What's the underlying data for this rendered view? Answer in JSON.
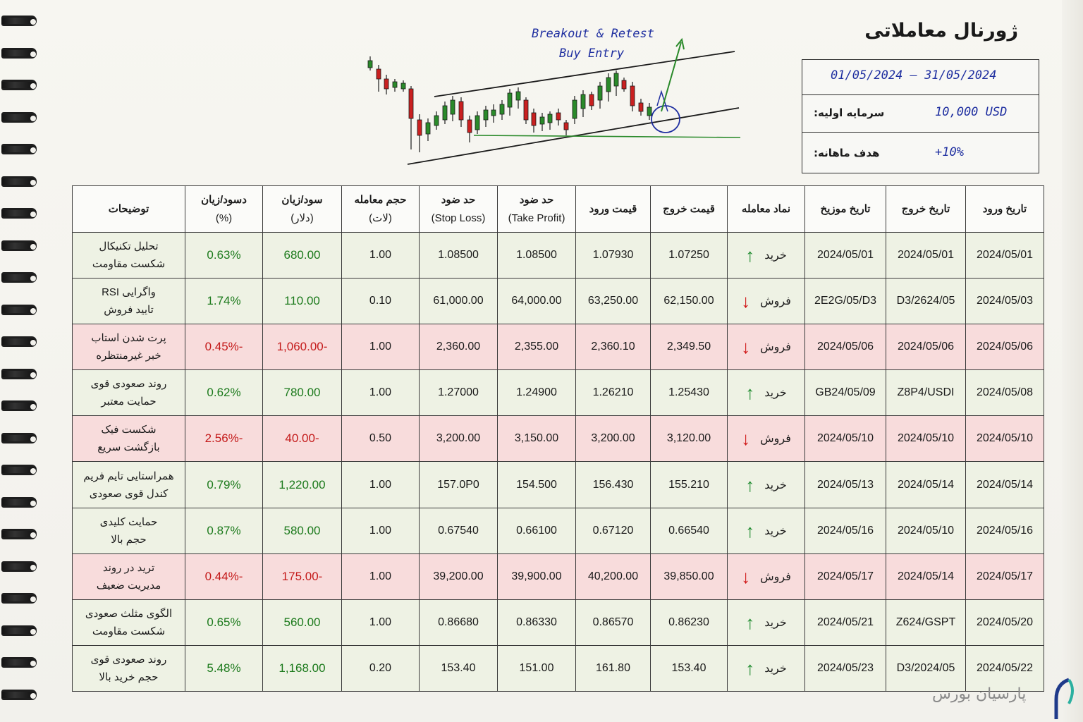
{
  "title": "ژورنال معاملاتی",
  "period": {
    "start": "01/05/2024",
    "end": "31/05/2024",
    "separator": "–"
  },
  "initial_capital": {
    "label": "سرمایه اولیه:",
    "value": "10,000 USD"
  },
  "monthly_target": {
    "label": "هدف ماهانه:",
    "value": "+10%"
  },
  "chart": {
    "annotation_line1": "Breakout & Retest",
    "annotation_line2": "Buy Entry"
  },
  "columns": [
    {
      "line1": "تاریخ ورود",
      "line2": ""
    },
    {
      "line1": "تاریخ خروج",
      "line2": ""
    },
    {
      "line1": "تاریخ موزیخ",
      "line2": ""
    },
    {
      "line1": "نماد معامله",
      "line2": ""
    },
    {
      "line1": "قیمت خروج",
      "line2": ""
    },
    {
      "line1": "قیمت ورود",
      "line2": ""
    },
    {
      "line1": "حد ضود",
      "line2": "(Take Profit)"
    },
    {
      "line1": "حد ضود",
      "line2": "(Stop Loss)"
    },
    {
      "line1": "حجم معامله",
      "line2": "(لات)"
    },
    {
      "line1": "سود/زیان",
      "line2": "(دلار)"
    },
    {
      "line1": "دسود/زیان",
      "line2": "(%)"
    },
    {
      "line1": "توضیحات",
      "line2": ""
    }
  ],
  "rows": [
    {
      "result": "win",
      "entry_date": "2024/05/01",
      "exit_date": "2024/05/01",
      "date3": "2024/05/01",
      "side": "خرید",
      "direction": "up",
      "exit_price": "1.07250",
      "entry_price": "1.07930",
      "take_profit": "1.08500",
      "stop_loss": "1.08500",
      "lots": "1.00",
      "pnl_usd": "680.00",
      "pnl_pct": "0.63%",
      "note1": "تحلیل تکنیکال",
      "note2": "شکست مقاومت"
    },
    {
      "result": "win",
      "entry_date": "2024/05/03",
      "exit_date": "2624/05/D3",
      "date3": "2E2G/05/D3",
      "side": "فروش",
      "direction": "down",
      "exit_price": "62,150.00",
      "entry_price": "63,250.00",
      "take_profit": "64,000.00",
      "stop_loss": "61,000.00",
      "lots": "0.10",
      "pnl_usd": "110.00",
      "pnl_pct": "1.74%",
      "note1": "واگرایی RSI",
      "note2": "تایید فروش"
    },
    {
      "result": "loss",
      "entry_date": "2024/05/06",
      "exit_date": "2024/05/06",
      "date3": "2024/05/06",
      "side": "فروش",
      "direction": "down",
      "exit_price": "2,349.50",
      "entry_price": "2,360.10",
      "take_profit": "2,355.00",
      "stop_loss": "2,360.00",
      "lots": "1.00",
      "pnl_usd": "-1,060.00",
      "pnl_pct": "-0.45%",
      "note1": "پرت شدن استاب",
      "note2": "خبر غیرمنتظره"
    },
    {
      "result": "win",
      "entry_date": "2024/05/08",
      "exit_date": "Z8P4/USDI",
      "date3": "GB24/05/09",
      "side": "خرید",
      "direction": "up",
      "exit_price": "1.25430",
      "entry_price": "1.26210",
      "take_profit": "1.24900",
      "stop_loss": "1.27000",
      "lots": "1.00",
      "pnl_usd": "780.00",
      "pnl_pct": "0.62%",
      "note1": "روند صعودی قوی",
      "note2": "حمایت معتبر"
    },
    {
      "result": "loss",
      "entry_date": "2024/05/10",
      "exit_date": "2024/05/10",
      "date3": "2024/05/10",
      "side": "فروش",
      "direction": "down",
      "exit_price": "3,120.00",
      "entry_price": "3,200.00",
      "take_profit": "3,150.00",
      "stop_loss": "3,200.00",
      "lots": "0.50",
      "pnl_usd": "-40.00",
      "pnl_pct": "-2.56%",
      "note1": "شکست فیک",
      "note2": "بازگشت سریع"
    },
    {
      "result": "win",
      "entry_date": "2024/05/14",
      "exit_date": "2024/05/14",
      "date3": "2024/05/13",
      "side": "خرید",
      "direction": "up",
      "exit_price": "155.210",
      "entry_price": "156.430",
      "take_profit": "154.500",
      "stop_loss": "157.0P0",
      "lots": "1.00",
      "pnl_usd": "1,220.00",
      "pnl_pct": "0.79%",
      "note1": "همراستایی تایم فریم",
      "note2": "کندل قوی صعودی"
    },
    {
      "result": "win",
      "entry_date": "2024/05/16",
      "exit_date": "2024/05/10",
      "date3": "2024/05/16",
      "side": "خرید",
      "direction": "up",
      "exit_price": "0.66540",
      "entry_price": "0.67120",
      "take_profit": "0.66100",
      "stop_loss": "0.67540",
      "lots": "1.00",
      "pnl_usd": "580.00",
      "pnl_pct": "0.87%",
      "note1": "حمایت کلیدی",
      "note2": "حجم بالا"
    },
    {
      "result": "loss",
      "entry_date": "2024/05/17",
      "exit_date": "2024/05/14",
      "date3": "2024/05/17",
      "side": "فروش",
      "direction": "down",
      "exit_price": "39,850.00",
      "entry_price": "40,200.00",
      "take_profit": "39,900.00",
      "stop_loss": "39,200.00",
      "lots": "1.00",
      "pnl_usd": "-175.00",
      "pnl_pct": "-0.44%",
      "note1": "ترید در روند",
      "note2": "مدیریت ضعیف"
    },
    {
      "result": "win",
      "entry_date": "2024/05/20",
      "exit_date": "Z624/GSPT",
      "date3": "2024/05/21",
      "side": "خرید",
      "direction": "up",
      "exit_price": "0.86230",
      "entry_price": "0.86570",
      "take_profit": "0.86330",
      "stop_loss": "0.86680",
      "lots": "1.00",
      "pnl_usd": "560.00",
      "pnl_pct": "0.65%",
      "note1": "الگوی مثلث صعودی",
      "note2": "شکست مقاومت"
    },
    {
      "result": "win",
      "entry_date": "2024/05/22",
      "exit_date": "2024/05/D3",
      "date3": "2024/05/23",
      "side": "خرید",
      "direction": "up",
      "exit_price": "153.40",
      "entry_price": "161.80",
      "take_profit": "151.00",
      "stop_loss": "153.40",
      "lots": "0.20",
      "pnl_usd": "1,168.00",
      "pnl_pct": "5.48%",
      "note1": "روند صعودی قوی",
      "note2": "حجم خرید بالا"
    }
  ],
  "logo": {
    "text": "پارسیان بورس",
    "icon": "parsian-logo-icon",
    "color": "#1f3a8a"
  },
  "colors": {
    "profit": "#1c7a1c",
    "loss": "#c41a1a",
    "win_row": "#eef2e4",
    "loss_row": "#f8dcdc",
    "annotation": "#1f2fa0"
  }
}
